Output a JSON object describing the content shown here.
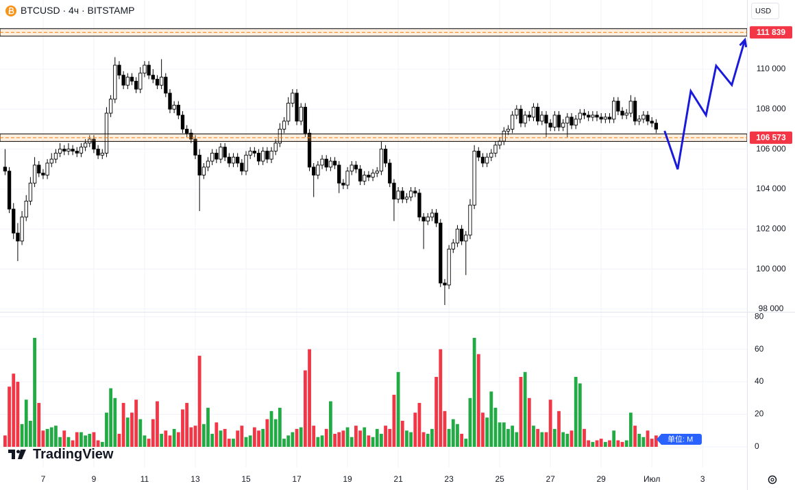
{
  "chart_data": {
    "type": "candlestick",
    "title": "BTCUSD · 4ч · BITSTAMP",
    "currency": "USD",
    "watermark": "TradingView",
    "volume_unit_label": "单位: M",
    "up_color": "#ffffff",
    "down_color": "#000000",
    "outline_color": "#000000",
    "volume_up_color": "#22ab44",
    "volume_down_color": "#f23645",
    "grid": true,
    "xlim": [
      -1.2,
      175.5
    ],
    "xticks": [
      {
        "value": 9,
        "label": "7"
      },
      {
        "value": 21,
        "label": "9"
      },
      {
        "value": 33,
        "label": "11"
      },
      {
        "value": 45,
        "label": "13"
      },
      {
        "value": 57,
        "label": "15"
      },
      {
        "value": 69,
        "label": "17"
      },
      {
        "value": 81,
        "label": "19"
      },
      {
        "value": 93,
        "label": "21"
      },
      {
        "value": 105,
        "label": "23"
      },
      {
        "value": 117,
        "label": "25"
      },
      {
        "value": 129,
        "label": "27"
      },
      {
        "value": 141,
        "label": "29"
      },
      {
        "value": 153,
        "label": "Июл"
      },
      {
        "value": 165,
        "label": "3"
      }
    ],
    "ylim": [
      97860,
      113460
    ],
    "yticks": [
      {
        "value": 98000,
        "label": "98 000"
      },
      {
        "value": 100000,
        "label": "100 000"
      },
      {
        "value": 102000,
        "label": "102 000"
      },
      {
        "value": 104000,
        "label": "104 000"
      },
      {
        "value": 106000,
        "label": "106 000"
      },
      {
        "value": 108000,
        "label": "108 000"
      },
      {
        "value": 110000,
        "label": "110 000"
      }
    ],
    "volume_ylim": [
      0,
      83
    ],
    "volume_yticks": [
      0,
      20,
      40,
      60,
      80
    ],
    "levels": [
      {
        "value": 111839,
        "label": "111 839"
      },
      {
        "value": 106573,
        "label": "106 573"
      }
    ],
    "level_color": "#f23645",
    "projection": {
      "color": "#1a1adb",
      "x": [
        156,
        159.1,
        162.2,
        165.8,
        168.2,
        171.9,
        175
      ],
      "y": [
        106912,
        104991,
        108900,
        107700,
        110169,
        109209,
        111471
      ]
    },
    "open": [
      105100,
      104900,
      103000,
      101800,
      101400,
      102600,
      103400,
      104300,
      105200,
      104800,
      104700,
      105300,
      105500,
      105800,
      106000,
      105900,
      106000,
      105900,
      105800,
      106100,
      106300,
      106500,
      106000,
      105700,
      105800,
      107800,
      108500,
      110200,
      109700,
      109200,
      109600,
      109400,
      109000,
      109800,
      110200,
      109700,
      109500,
      109200,
      109600,
      108800,
      108000,
      108200,
      107700,
      107000,
      106800,
      106500,
      105700,
      104700,
      105100,
      105400,
      105800,
      105500,
      106100,
      105600,
      105300,
      105600,
      105300,
      104900,
      105700,
      105900,
      105800,
      105400,
      105900,
      105500,
      105900,
      106300,
      107000,
      107400,
      108300,
      108800,
      107400,
      108100,
      106800,
      105100,
      104700,
      105200,
      105500,
      105100,
      105400,
      105200,
      104300,
      104200,
      104900,
      105200,
      105000,
      104400,
      104700,
      104600,
      104800,
      104900,
      106000,
      105300,
      104300,
      103500,
      103900,
      103500,
      103600,
      103900,
      103800,
      102600,
      102400,
      102600,
      102800,
      102300,
      99300,
      99200,
      101000,
      101300,
      102000,
      101400,
      101700,
      103200,
      105900,
      105600,
      105300,
      105600,
      105800,
      106200,
      106400,
      106900,
      107000,
      107700,
      108000,
      107300,
      107700,
      107600,
      108100,
      107400,
      107700,
      107300,
      107100,
      107700,
      107100,
      107300,
      107600,
      107200,
      107500,
      107800,
      107700,
      107600,
      107700,
      107600,
      107500,
      107600,
      107500,
      108400,
      107900,
      107700,
      107800,
      108400,
      107400,
      107500,
      107700,
      107400,
      107300
    ],
    "high": [
      106000,
      105100,
      103300,
      102300,
      102900,
      103700,
      104600,
      105600,
      105400,
      105000,
      105500,
      105800,
      106000,
      106300,
      106200,
      106300,
      106200,
      106100,
      106300,
      106500,
      106700,
      106700,
      106200,
      106000,
      108100,
      108700,
      110600,
      110400,
      109900,
      109800,
      109800,
      109600,
      110100,
      110400,
      110400,
      110000,
      109700,
      110500,
      109800,
      109000,
      108400,
      108400,
      107900,
      107200,
      107000,
      106700,
      106000,
      105300,
      105600,
      106000,
      106000,
      106300,
      106300,
      105800,
      105800,
      105800,
      105500,
      105900,
      106100,
      106100,
      106000,
      106100,
      106100,
      106100,
      106500,
      107300,
      107600,
      108600,
      109000,
      109000,
      108300,
      108300,
      107000,
      105300,
      105400,
      105700,
      105700,
      105600,
      105600,
      105400,
      104500,
      105100,
      105400,
      105400,
      105200,
      104900,
      104900,
      105000,
      105100,
      106400,
      106200,
      105500,
      104500,
      104100,
      104100,
      103800,
      104100,
      104100,
      104000,
      102800,
      102800,
      103000,
      103000,
      102500,
      99500,
      101200,
      101500,
      102200,
      102200,
      101900,
      103500,
      106200,
      106100,
      105800,
      105800,
      106000,
      106400,
      106600,
      107100,
      107200,
      107900,
      108200,
      108200,
      107900,
      107900,
      108300,
      108300,
      107900,
      107900,
      107500,
      107900,
      107900,
      107500,
      107800,
      107800,
      107700,
      108000,
      108000,
      107900,
      107900,
      107900,
      107800,
      107800,
      107800,
      108600,
      108600,
      108100,
      108000,
      108700,
      108600,
      107700,
      107900,
      107900,
      107600,
      107500
    ],
    "low": [
      104700,
      102800,
      101500,
      100400,
      101200,
      102400,
      103200,
      104100,
      104600,
      104500,
      104500,
      105100,
      105300,
      105600,
      105700,
      105700,
      105700,
      105600,
      105600,
      105900,
      106100,
      105800,
      105500,
      105500,
      105600,
      107600,
      108300,
      109500,
      109000,
      109000,
      109200,
      108800,
      108800,
      109600,
      109500,
      109300,
      109000,
      109000,
      108600,
      107800,
      107800,
      107500,
      106800,
      106600,
      106300,
      105500,
      102900,
      104500,
      104900,
      105200,
      105300,
      105300,
      105400,
      105100,
      105100,
      105100,
      104700,
      104700,
      105500,
      105600,
      105200,
      105200,
      105300,
      105300,
      105700,
      106100,
      106800,
      107200,
      108100,
      107200,
      107200,
      106600,
      104900,
      103600,
      104500,
      105000,
      104900,
      104900,
      105000,
      103800,
      104000,
      104000,
      104700,
      104800,
      104200,
      104200,
      104400,
      104400,
      104600,
      104700,
      105100,
      104100,
      102400,
      103300,
      103300,
      103300,
      103400,
      103600,
      102400,
      101000,
      102200,
      102400,
      102100,
      99100,
      98200,
      99000,
      100800,
      101100,
      101200,
      99700,
      101500,
      103000,
      105400,
      105100,
      105100,
      105400,
      105600,
      106000,
      106200,
      106700,
      106800,
      107500,
      107100,
      107100,
      107400,
      107400,
      107200,
      107200,
      106600,
      106900,
      106900,
      106900,
      106900,
      106600,
      107000,
      107000,
      107300,
      107500,
      107400,
      107400,
      107400,
      107300,
      107300,
      107300,
      107300,
      107700,
      107500,
      107500,
      107600,
      107200,
      107200,
      107300,
      107200,
      107100,
      106800
    ],
    "close": [
      104900,
      103000,
      101800,
      101400,
      102600,
      103400,
      104300,
      105200,
      104800,
      104700,
      105300,
      105500,
      105800,
      106000,
      105900,
      106000,
      105900,
      105800,
      106100,
      106300,
      106500,
      106000,
      105700,
      105800,
      107800,
      108500,
      110200,
      109700,
      109200,
      109600,
      109400,
      109000,
      109800,
      110200,
      109700,
      109500,
      109200,
      109600,
      108800,
      108000,
      108200,
      107700,
      107000,
      106800,
      106500,
      105700,
      104700,
      105100,
      105400,
      105800,
      105500,
      106100,
      105600,
      105300,
      105600,
      105300,
      104900,
      105700,
      105900,
      105800,
      105400,
      105900,
      105500,
      105900,
      106300,
      107000,
      107400,
      108300,
      108800,
      107400,
      108100,
      106800,
      105100,
      104700,
      105200,
      105500,
      105100,
      105400,
      105200,
      104300,
      104200,
      104900,
      105200,
      105000,
      104400,
      104700,
      104600,
      104800,
      104900,
      106000,
      105300,
      104300,
      103500,
      103900,
      103500,
      103600,
      103900,
      103800,
      102600,
      102400,
      102600,
      102800,
      102300,
      99300,
      99200,
      101000,
      101300,
      102000,
      101400,
      101700,
      103200,
      105900,
      105600,
      105300,
      105600,
      105800,
      106200,
      106400,
      106900,
      107000,
      107700,
      108000,
      107300,
      107700,
      107600,
      108100,
      107400,
      107700,
      107300,
      107100,
      107700,
      107100,
      107300,
      107600,
      107200,
      107500,
      107800,
      107700,
      107600,
      107700,
      107600,
      107500,
      107600,
      107500,
      108400,
      107900,
      107700,
      107800,
      108400,
      107400,
      107500,
      107700,
      107400,
      107300,
      107000
    ],
    "volume": [
      7,
      37,
      45,
      40,
      14,
      29,
      16,
      67,
      27,
      10,
      11,
      12,
      13,
      6,
      10,
      6,
      4,
      9,
      9,
      7,
      8,
      9,
      4,
      3,
      21,
      36,
      30,
      8,
      27,
      18,
      21,
      29,
      17,
      7,
      5,
      17,
      28,
      8,
      10,
      7,
      11,
      9,
      23,
      27,
      12,
      13,
      56,
      14,
      24,
      8,
      15,
      10,
      11,
      5,
      5,
      10,
      13,
      6,
      7,
      12,
      10,
      11,
      17,
      22,
      17,
      24,
      5,
      7,
      9,
      11,
      12,
      47,
      60,
      13,
      6,
      7,
      11,
      28,
      8,
      9,
      10,
      12,
      6,
      13,
      10,
      12,
      7,
      6,
      11,
      8,
      13,
      11,
      32,
      46,
      16,
      10,
      9,
      21,
      27,
      9,
      8,
      11,
      43,
      60,
      22,
      11,
      17,
      14,
      8,
      5,
      30,
      67,
      57,
      21,
      18,
      34,
      24,
      15,
      15,
      11,
      13,
      9,
      43,
      46,
      30,
      13,
      11,
      9,
      9,
      29,
      11,
      22,
      9,
      8,
      10,
      43,
      39,
      11,
      4,
      3,
      4,
      5,
      3,
      4,
      10,
      4,
      3,
      4,
      21,
      13,
      8,
      6,
      10,
      5,
      7
    ]
  }
}
